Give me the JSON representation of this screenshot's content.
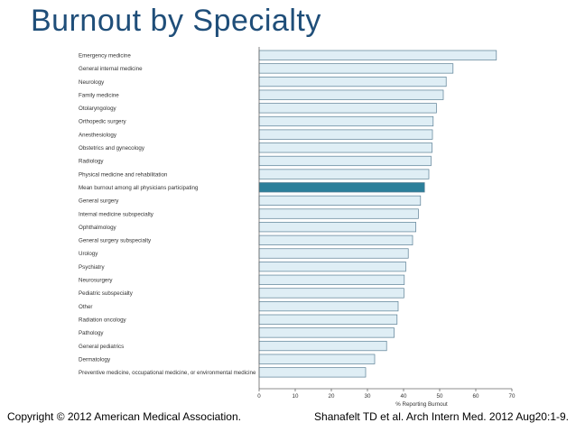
{
  "slide": {
    "title": "Burnout by Specialty",
    "footer_left": "Copyright © 2012 American Medical Association.",
    "footer_right": "Shanafelt TD et al. Arch Intern Med. 2012 Aug20:1-9."
  },
  "colors": {
    "title": "#1f4e79",
    "bar_fill": "#dfeef5",
    "bar_stroke": "#5a7f94",
    "highlight_fill": "#2c7f9a"
  },
  "chart_data": {
    "type": "bar",
    "orientation": "horizontal",
    "xlabel": "% Reporting Burnout",
    "xlim": [
      0,
      70
    ],
    "xticks": [
      0,
      10,
      20,
      30,
      40,
      50,
      60,
      70
    ],
    "grid": false,
    "highlight_category": "Mean burnout among all physicians participating",
    "categories": [
      "Emergency medicine",
      "General internal medicine",
      "Neurology",
      "Family medicine",
      "Otolaryngology",
      "Orthopedic surgery",
      "Anesthesiology",
      "Obstetrics and gynecology",
      "Radiology",
      "Physical medicine and rehabilitation",
      "Mean burnout among all physicians participating",
      "General surgery",
      "Internal medicine subspecialty",
      "Ophthalmology",
      "General surgery subspecialty",
      "Urology",
      "Psychiatry",
      "Neurosurgery",
      "Pediatric subspecialty",
      "Other",
      "Radiation oncology",
      "Pathology",
      "General pediatrics",
      "Dermatology",
      "Preventive medicine, occupational medicine, or environmental medicine"
    ],
    "values": [
      65.7,
      53.7,
      51.8,
      51.0,
      49.1,
      48.2,
      48.0,
      47.9,
      47.6,
      47.0,
      45.8,
      44.7,
      44.1,
      43.4,
      42.5,
      41.3,
      40.6,
      40.2,
      40.1,
      38.5,
      38.2,
      37.4,
      35.3,
      32.0,
      29.5
    ]
  }
}
